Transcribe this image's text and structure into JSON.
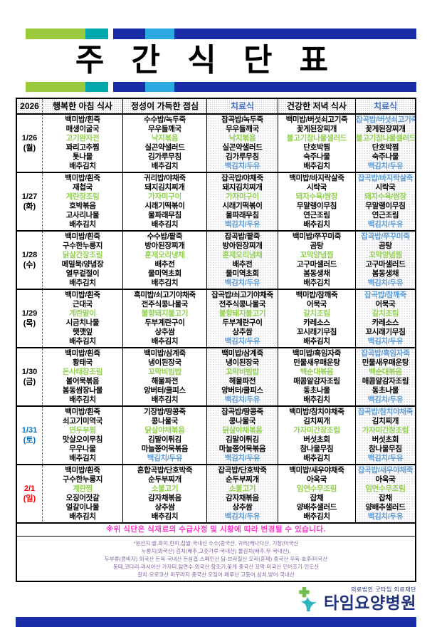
{
  "title": "주 간 식 단 표",
  "header": {
    "year": "2026",
    "breakfast": "행복한 아침 식사",
    "lunch": "정성이 가득한 점심",
    "diet_lunch": "치료식",
    "dinner": "건강한 저녁 식사",
    "diet_dinner": "치료식"
  },
  "colors": {
    "bar_green": "#9ACA3C",
    "bar_teal": "#00A7AD",
    "bar_navy": "#1B2CA8",
    "bar_lightblue": "#2BA9E1",
    "diet_header_text": "#4472C4",
    "notice_pink": "#FF33CC",
    "origin_purple": "#8064A2",
    "logo_navy": "#20327E",
    "logo_teal": "#2BB3C0",
    "logo_green": "#6DBE4B",
    "date_saturday": "#0070C0",
    "date_sunday": "#FF0000"
  },
  "item_color_map": {
    "k": "#000000",
    "g": "#92D050",
    "b": "#5B9BD5"
  },
  "days": [
    {
      "date": "1/26",
      "weekday": "(월)",
      "date_color": "#000000",
      "meals": {
        "breakfast": [
          [
            "백미밥/흰죽",
            "k"
          ],
          [
            "매생이굴국",
            "k"
          ],
          [
            "고기완자전",
            "g"
          ],
          [
            "꽈리고추찜",
            "k"
          ],
          [
            "톳나물",
            "k"
          ],
          [
            "배추김치",
            "k"
          ]
        ],
        "lunch": [
          [
            "수수밥/녹두죽",
            "k"
          ],
          [
            "무우들깨국",
            "k"
          ],
          [
            "낙지볶음",
            "g"
          ],
          [
            "실곤약샐러드",
            "k"
          ],
          [
            "김가루무침",
            "k"
          ],
          [
            "배추김치",
            "k"
          ]
        ],
        "diet_lunch": [
          [
            "잡곡밥/녹두죽",
            "k"
          ],
          [
            "무우들깨국",
            "k"
          ],
          [
            "낙지볶음",
            "g"
          ],
          [
            "실곤약샐러드",
            "k"
          ],
          [
            "김가루무침",
            "k"
          ],
          [
            "백김치/두유",
            "b"
          ]
        ],
        "dinner": [
          [
            "백미밥/버섯쇠고기죽",
            "k"
          ],
          [
            "꽃게된장찌개",
            "k"
          ],
          [
            "불고기참나물샐러드",
            "g"
          ],
          [
            "단호박찜",
            "k"
          ],
          [
            "숙주나물",
            "k"
          ],
          [
            "배추김치",
            "k"
          ]
        ],
        "diet_dinner": [
          [
            "잡곡밥/버섯쇠고기죽",
            "b"
          ],
          [
            "꽃게된장찌개",
            "k"
          ],
          [
            "불고기참나물샐러드",
            "g"
          ],
          [
            "단호박찜",
            "k"
          ],
          [
            "숙주나물",
            "k"
          ],
          [
            "백김치/두유",
            "b"
          ]
        ]
      }
    },
    {
      "date": "1/27",
      "weekday": "(화)",
      "date_color": "#000000",
      "meals": {
        "breakfast": [
          [
            "백미밥/흰죽",
            "k"
          ],
          [
            "재첩국",
            "k"
          ],
          [
            "계란장조림",
            "g"
          ],
          [
            "호박볶음",
            "k"
          ],
          [
            "고사리나물",
            "k"
          ],
          [
            "배추김치",
            "k"
          ]
        ],
        "lunch": [
          [
            "귀리밥/야채죽",
            "k"
          ],
          [
            "돼지김치찌개",
            "k"
          ],
          [
            "가자미구이",
            "g"
          ],
          [
            "시래기떡볶이",
            "k"
          ],
          [
            "물파래무침",
            "k"
          ],
          [
            "배추김치",
            "k"
          ]
        ],
        "diet_lunch": [
          [
            "잡곡밥/야채죽",
            "k"
          ],
          [
            "돼지김치찌개",
            "k"
          ],
          [
            "가자미구이",
            "g"
          ],
          [
            "시래기떡볶이",
            "k"
          ],
          [
            "물파래무침",
            "k"
          ],
          [
            "백김치/두유",
            "b"
          ]
        ],
        "dinner": [
          [
            "백미밥/바지락살죽",
            "k"
          ],
          [
            "시락국",
            "k"
          ],
          [
            "돼지수육/쌈장",
            "g"
          ],
          [
            "무말랭이무침",
            "k"
          ],
          [
            "연근조림",
            "k"
          ],
          [
            "배추김치",
            "k"
          ]
        ],
        "diet_dinner": [
          [
            "잡곡밥/바지락살죽",
            "b"
          ],
          [
            "시락국",
            "k"
          ],
          [
            "돼지수육/쌈장",
            "g"
          ],
          [
            "무말랭이무침",
            "k"
          ],
          [
            "연근조림",
            "k"
          ],
          [
            "백김치/두유",
            "b"
          ]
        ]
      }
    },
    {
      "date": "1/28",
      "weekday": "(수)",
      "date_color": "#000000",
      "meals": {
        "breakfast": [
          [
            "백미밥/흰죽",
            "k"
          ],
          [
            "구수한누룽지",
            "k"
          ],
          [
            "닭살간장조림",
            "g"
          ],
          [
            "메밀묵/양념장",
            "k"
          ],
          [
            "열무겉절이",
            "k"
          ],
          [
            "배추김치",
            "k"
          ]
        ],
        "lunch": [
          [
            "수수밥/팥죽",
            "k"
          ],
          [
            "방아된장찌개",
            "k"
          ],
          [
            "훈제오리냉채",
            "g"
          ],
          [
            "배추전",
            "k"
          ],
          [
            "물미역초회",
            "k"
          ],
          [
            "배추김치",
            "k"
          ]
        ],
        "diet_lunch": [
          [
            "잡곡밥/팥죽",
            "k"
          ],
          [
            "방아된장찌개",
            "k"
          ],
          [
            "훈제오리냉채",
            "g"
          ],
          [
            "배추전",
            "k"
          ],
          [
            "물미역초회",
            "k"
          ],
          [
            "백김치/두유",
            "b"
          ]
        ],
        "dinner": [
          [
            "백미밥/쭈꾸미죽",
            "k"
          ],
          [
            "곰탕",
            "k"
          ],
          [
            "꼬막양념찜",
            "g"
          ],
          [
            "고구마샐러드",
            "k"
          ],
          [
            "봄동생채",
            "k"
          ],
          [
            "배추김치",
            "k"
          ]
        ],
        "diet_dinner": [
          [
            "잡곡밥/쭈꾸미죽",
            "b"
          ],
          [
            "곰탕",
            "k"
          ],
          [
            "꼬막양념찜",
            "g"
          ],
          [
            "고구마샐러드",
            "k"
          ],
          [
            "봄동생채",
            "k"
          ],
          [
            "백김치/두유",
            "b"
          ]
        ]
      }
    },
    {
      "date": "1/29",
      "weekday": "(목)",
      "date_color": "#000000",
      "meals": {
        "breakfast": [
          [
            "백미밥/흰죽",
            "k"
          ],
          [
            "근대국",
            "k"
          ],
          [
            "계란말이",
            "g"
          ],
          [
            "시금치나물",
            "k"
          ],
          [
            "햇깻잎",
            "k"
          ],
          [
            "배추김치",
            "k"
          ]
        ],
        "lunch": [
          [
            "흑미밥/쇠고기야채죽",
            "k"
          ],
          [
            "전주식콩나물국",
            "k"
          ],
          [
            "불향돼지불고기",
            "g"
          ],
          [
            "두부계란구이",
            "k"
          ],
          [
            "상추쌈",
            "k"
          ],
          [
            "배추김치",
            "k"
          ]
        ],
        "diet_lunch": [
          [
            "잡곡밥/쇠고기야채죽",
            "k"
          ],
          [
            "전주식콩나물국",
            "k"
          ],
          [
            "불향돼지불고기",
            "g"
          ],
          [
            "두부계란구이",
            "k"
          ],
          [
            "상추쌈",
            "k"
          ],
          [
            "백김치/두유",
            "b"
          ]
        ],
        "dinner": [
          [
            "백미밥/참깨죽",
            "k"
          ],
          [
            "어묵국",
            "k"
          ],
          [
            "갈치조림",
            "g"
          ],
          [
            "카레소스",
            "k"
          ],
          [
            "꼬시래기무침",
            "k"
          ],
          [
            "배추김치",
            "k"
          ]
        ],
        "diet_dinner": [
          [
            "잡곡밥/참깨죽",
            "b"
          ],
          [
            "어묵국",
            "k"
          ],
          [
            "갈치조림",
            "g"
          ],
          [
            "카레소스",
            "k"
          ],
          [
            "꼬시래기무침",
            "k"
          ],
          [
            "백김치/두유",
            "b"
          ]
        ]
      }
    },
    {
      "date": "1/30",
      "weekday": "(금)",
      "date_color": "#000000",
      "meals": {
        "breakfast": [
          [
            "백미밥/흰죽",
            "k"
          ],
          [
            "황태국",
            "k"
          ],
          [
            "돈사태장조림",
            "g"
          ],
          [
            "볼어묵볶음",
            "k"
          ],
          [
            "봄동쌈장나물",
            "k"
          ],
          [
            "배추김치",
            "k"
          ]
        ],
        "lunch": [
          [
            "백미밥/삼계죽",
            "k"
          ],
          [
            "냉이된장국",
            "k"
          ],
          [
            "꼬막비빔밥",
            "g"
          ],
          [
            "해물파전",
            "k"
          ],
          [
            "앙버터/쿨피스",
            "k"
          ],
          [
            "배추김치",
            "k"
          ]
        ],
        "diet_lunch": [
          [
            "백미밥/삼계죽",
            "k"
          ],
          [
            "냉이된장국",
            "k"
          ],
          [
            "꼬막비빔밥",
            "g"
          ],
          [
            "해물파전",
            "k"
          ],
          [
            "앙버터/쿨피스",
            "k"
          ],
          [
            "백김치/두유",
            "b"
          ]
        ],
        "dinner": [
          [
            "백미밥/흑임자죽",
            "k"
          ],
          [
            "민물새우매운탕",
            "k"
          ],
          [
            "백순대볶음",
            "g"
          ],
          [
            "매콤알감자조림",
            "k"
          ],
          [
            "동초나물",
            "k"
          ],
          [
            "배추김치",
            "k"
          ]
        ],
        "diet_dinner": [
          [
            "잡곡밥/흑임자죽",
            "b"
          ],
          [
            "민물새우매운탕",
            "k"
          ],
          [
            "백순대볶음",
            "g"
          ],
          [
            "매콤알감자조림",
            "k"
          ],
          [
            "동초나물",
            "k"
          ],
          [
            "백김치/두유",
            "b"
          ]
        ]
      }
    },
    {
      "date": "1/31",
      "weekday": "(토)",
      "date_color": "#0070C0",
      "meals": {
        "breakfast": [
          [
            "백미밥/흰죽",
            "k"
          ],
          [
            "쇠고기미역국",
            "k"
          ],
          [
            "연두부찜",
            "g"
          ],
          [
            "맛살오이무침",
            "k"
          ],
          [
            "무우나물",
            "k"
          ],
          [
            "배추김치",
            "k"
          ]
        ],
        "lunch": [
          [
            "기장밥/땅콩죽",
            "k"
          ],
          [
            "콩나물국",
            "k"
          ],
          [
            "닭살야채볶음",
            "g"
          ],
          [
            "김말이튀김",
            "k"
          ],
          [
            "마늘쫑어묵볶음",
            "k"
          ],
          [
            "백김치/두유",
            "b"
          ]
        ],
        "diet_lunch": [
          [
            "잡곡밥/땅콩죽",
            "k"
          ],
          [
            "콩나물국",
            "k"
          ],
          [
            "닭살야채볶음",
            "g"
          ],
          [
            "김말이튀김",
            "k"
          ],
          [
            "마늘쫑어묵볶음",
            "k"
          ],
          [
            "백김치/두유",
            "b"
          ]
        ],
        "dinner": [
          [
            "백미밥/참치야채죽",
            "k"
          ],
          [
            "김치찌개",
            "k"
          ],
          [
            "가자미간장조림",
            "g"
          ],
          [
            "버섯초회",
            "k"
          ],
          [
            "참나물무침",
            "k"
          ],
          [
            "배추김치",
            "k"
          ]
        ],
        "diet_dinner": [
          [
            "잡곡밥/참치야채죽",
            "b"
          ],
          [
            "김치찌개",
            "k"
          ],
          [
            "가자미간장조림",
            "g"
          ],
          [
            "버섯초회",
            "k"
          ],
          [
            "참나물무침",
            "k"
          ],
          [
            "백김치/두유",
            "b"
          ]
        ]
      }
    },
    {
      "date": "2/1",
      "weekday": "(일)",
      "date_color": "#FF0000",
      "meals": {
        "breakfast": [
          [
            "백미밥/흰죽",
            "k"
          ],
          [
            "구수한누룽지",
            "k"
          ],
          [
            "계란찜",
            "g"
          ],
          [
            "오징어젓갈",
            "k"
          ],
          [
            "얼갈이나물",
            "k"
          ],
          [
            "배추김치",
            "k"
          ]
        ],
        "lunch": [
          [
            "혼합곡밥/단호박죽",
            "k"
          ],
          [
            "순두부찌개",
            "k"
          ],
          [
            "소불고기",
            "g"
          ],
          [
            "감자채볶음",
            "k"
          ],
          [
            "상추쌈",
            "k"
          ],
          [
            "배추김치",
            "k"
          ]
        ],
        "diet_lunch": [
          [
            "잡곡밥/단호박죽",
            "k"
          ],
          [
            "순두부찌개",
            "k"
          ],
          [
            "소불고기",
            "g"
          ],
          [
            "감자채볶음",
            "k"
          ],
          [
            "상추쌈",
            "k"
          ],
          [
            "백김치/두유",
            "b"
          ]
        ],
        "dinner": [
          [
            "백미밥/새우야채죽",
            "k"
          ],
          [
            "아욱국",
            "k"
          ],
          [
            "임연수무조림",
            "g"
          ],
          [
            "잡채",
            "k"
          ],
          [
            "양배추샐러드",
            "k"
          ],
          [
            "배추김치",
            "k"
          ]
        ],
        "diet_dinner": [
          [
            "잡곡밥/새우야채죽",
            "b"
          ],
          [
            "아욱국",
            "k"
          ],
          [
            "임연수무조림",
            "g"
          ],
          [
            "잡채",
            "k"
          ],
          [
            "양배추샐러드",
            "k"
          ],
          [
            "백김치/두유",
            "b"
          ]
        ]
      }
    }
  ],
  "notice": "※위 식단은 식재료의 수급사정 및 시황에 따라 변경될 수 있습니다.",
  "origin_lines": [
    "*원산지:쌀,흑미,현미,찹쌀·국내산 수수(중국산, 귀리(캐나다산, 기장(미국산",
    "누룽지(외국산) 김치(배추,고춧가루·국내산) 물김치(배추,무·국내산),",
    "두부류(콩비지)·외국산 돈육·국내산 돈삼겹·스페인산 닭·브라질산 오리(훈제)·중국산 우육·호주/미국산",
    "동태,코다리·러시아산 가자미,임연수·외국산 참조기,꽃게·중국산 꼬막·미국산 민어조기·인도산",
    "갈치·모로코산 미꾸라지·중국산 오징어·페루산 고등어,삼치,방어·국내산"
  ],
  "footer": {
    "foundation": "의료법인 굿타임 의료재단",
    "hospital": "타임요양병원"
  }
}
